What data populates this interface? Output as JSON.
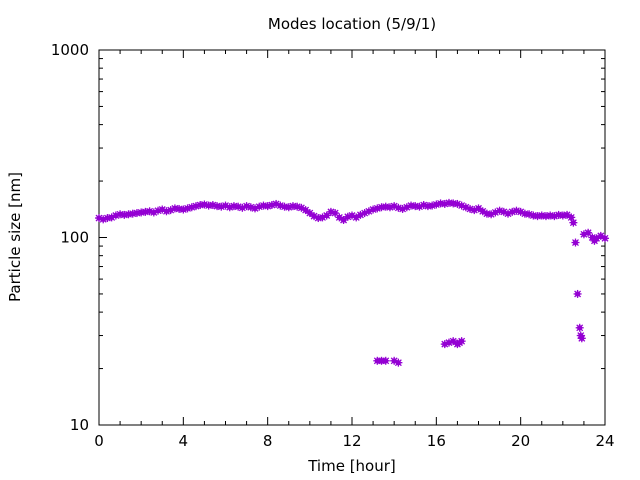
{
  "chart_data": {
    "type": "scatter",
    "title": "Modes location (5/9/1)",
    "xlabel": "Time [hour]",
    "ylabel": "Particle size [nm]",
    "xlim": [
      0,
      24
    ],
    "ylim": [
      10,
      1000
    ],
    "yscale": "log",
    "grid": false,
    "x_ticks": [
      0,
      4,
      8,
      12,
      16,
      20,
      24
    ],
    "x_tick_labels": [
      "0",
      "4",
      "8",
      "12",
      "16",
      "20",
      "24"
    ],
    "y_ticks": [
      10,
      100,
      1000
    ],
    "y_tick_labels": [
      "10",
      "100",
      "1000"
    ],
    "marker_color": "#9400d3",
    "series": [
      {
        "points": [
          [
            0.0,
            127
          ],
          [
            0.2,
            125
          ],
          [
            0.4,
            127
          ],
          [
            0.6,
            128
          ],
          [
            0.8,
            131
          ],
          [
            1.0,
            133
          ],
          [
            1.2,
            132
          ],
          [
            1.4,
            133
          ],
          [
            1.6,
            134
          ],
          [
            1.8,
            135
          ],
          [
            2.0,
            136
          ],
          [
            2.2,
            137
          ],
          [
            2.4,
            138
          ],
          [
            2.6,
            136
          ],
          [
            2.8,
            139
          ],
          [
            3.0,
            141
          ],
          [
            3.2,
            138
          ],
          [
            3.4,
            140
          ],
          [
            3.6,
            143
          ],
          [
            3.8,
            142
          ],
          [
            4.0,
            141
          ],
          [
            4.2,
            143
          ],
          [
            4.4,
            145
          ],
          [
            4.6,
            147
          ],
          [
            4.8,
            149
          ],
          [
            5.0,
            150
          ],
          [
            5.2,
            148
          ],
          [
            5.4,
            149
          ],
          [
            5.6,
            147
          ],
          [
            5.8,
            146
          ],
          [
            6.0,
            148
          ],
          [
            6.2,
            145
          ],
          [
            6.4,
            147
          ],
          [
            6.6,
            146
          ],
          [
            6.8,
            144
          ],
          [
            7.0,
            147
          ],
          [
            7.2,
            145
          ],
          [
            7.4,
            143
          ],
          [
            7.6,
            146
          ],
          [
            7.8,
            148
          ],
          [
            8.0,
            147
          ],
          [
            8.2,
            149
          ],
          [
            8.4,
            151
          ],
          [
            8.6,
            148
          ],
          [
            8.8,
            146
          ],
          [
            9.0,
            145
          ],
          [
            9.2,
            147
          ],
          [
            9.4,
            146
          ],
          [
            9.6,
            144
          ],
          [
            9.8,
            140
          ],
          [
            10.0,
            135
          ],
          [
            10.2,
            130
          ],
          [
            10.4,
            127
          ],
          [
            10.6,
            128
          ],
          [
            10.8,
            131
          ],
          [
            11.0,
            137
          ],
          [
            11.2,
            135
          ],
          [
            11.4,
            128
          ],
          [
            11.6,
            124
          ],
          [
            11.8,
            129
          ],
          [
            12.0,
            131
          ],
          [
            12.2,
            128
          ],
          [
            12.4,
            132
          ],
          [
            12.6,
            135
          ],
          [
            12.8,
            138
          ],
          [
            13.0,
            141
          ],
          [
            13.2,
            143
          ],
          [
            13.4,
            145
          ],
          [
            13.6,
            146
          ],
          [
            13.8,
            145
          ],
          [
            14.0,
            147
          ],
          [
            14.2,
            144
          ],
          [
            14.4,
            142
          ],
          [
            14.6,
            145
          ],
          [
            14.8,
            148
          ],
          [
            15.0,
            147
          ],
          [
            15.2,
            146
          ],
          [
            15.4,
            149
          ],
          [
            15.6,
            147
          ],
          [
            15.8,
            148
          ],
          [
            16.0,
            150
          ],
          [
            16.2,
            152
          ],
          [
            16.4,
            151
          ],
          [
            16.6,
            153
          ],
          [
            16.8,
            152
          ],
          [
            17.0,
            151
          ],
          [
            17.2,
            148
          ],
          [
            17.4,
            145
          ],
          [
            17.6,
            142
          ],
          [
            17.8,
            140
          ],
          [
            18.0,
            143
          ],
          [
            18.2,
            138
          ],
          [
            18.4,
            134
          ],
          [
            18.6,
            133
          ],
          [
            18.8,
            136
          ],
          [
            19.0,
            139
          ],
          [
            19.2,
            137
          ],
          [
            19.4,
            134
          ],
          [
            19.6,
            137
          ],
          [
            19.8,
            139
          ],
          [
            20.0,
            137
          ],
          [
            20.2,
            134
          ],
          [
            20.4,
            133
          ],
          [
            20.6,
            131
          ],
          [
            20.8,
            130
          ],
          [
            21.0,
            131
          ],
          [
            21.2,
            130
          ],
          [
            21.4,
            131
          ],
          [
            21.6,
            130
          ],
          [
            21.8,
            132
          ],
          [
            22.0,
            131
          ],
          [
            22.2,
            132
          ],
          [
            22.4,
            128
          ],
          [
            22.5,
            120
          ],
          [
            22.6,
            94
          ],
          [
            22.7,
            50
          ],
          [
            22.8,
            33
          ],
          [
            22.85,
            30
          ],
          [
            22.9,
            29
          ],
          [
            23.0,
            104
          ],
          [
            23.2,
            106
          ],
          [
            23.4,
            100
          ],
          [
            23.5,
            96
          ],
          [
            23.6,
            99
          ],
          [
            23.8,
            102
          ],
          [
            24.0,
            99
          ],
          [
            13.2,
            22
          ],
          [
            13.4,
            22
          ],
          [
            13.6,
            22
          ],
          [
            14.0,
            22
          ],
          [
            14.2,
            21.5
          ],
          [
            16.4,
            27
          ],
          [
            16.6,
            27.5
          ],
          [
            16.8,
            28
          ],
          [
            17.0,
            27
          ],
          [
            17.1,
            27.5
          ],
          [
            17.2,
            28
          ]
        ]
      }
    ]
  }
}
